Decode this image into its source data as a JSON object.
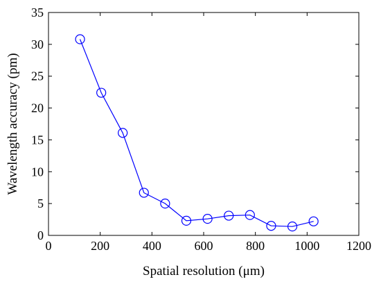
{
  "chart_data": {
    "type": "line",
    "xlabel": "Spatial resolution (μm)",
    "ylabel": "Wavelength accuracy (pm)",
    "xlim": [
      0,
      1200
    ],
    "ylim": [
      0,
      35
    ],
    "x_ticks": [
      0,
      200,
      400,
      600,
      800,
      1000,
      1200
    ],
    "y_ticks": [
      0,
      5,
      10,
      15,
      20,
      25,
      30,
      35
    ],
    "x_tick_labels": [
      "0",
      "200",
      "400",
      "600",
      "800",
      "1000",
      "1200"
    ],
    "y_tick_labels": [
      "0",
      "5",
      "10",
      "15",
      "20",
      "25",
      "30",
      "35"
    ],
    "grid": false,
    "series": [
      {
        "color": "#0000ff",
        "marker": "circle-open",
        "x": [
          122,
          204,
          287,
          369,
          451,
          533,
          615,
          697,
          779,
          861,
          943,
          1025
        ],
        "y": [
          30.8,
          22.4,
          16.1,
          6.7,
          5.0,
          2.3,
          2.6,
          3.1,
          3.2,
          1.5,
          1.4,
          2.2
        ]
      }
    ]
  }
}
